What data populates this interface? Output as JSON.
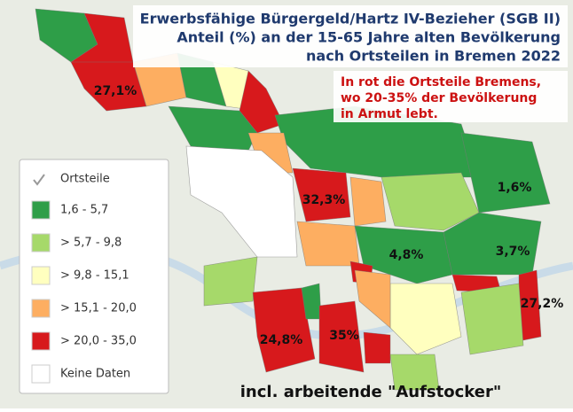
{
  "title": {
    "lines": [
      "Erwerbsfähige Bürgergeld/Hartz IV-Bezieher (SGB II)",
      "Anteil (%) an der 15-65 Jahre alten Bevölkerung",
      "nach Ortsteilen in Bremen 2022"
    ]
  },
  "note": {
    "lines": [
      "In rot die Ortsteile Bremens,",
      "wo 20-35% der Bevölkerung",
      "in Armut lebt."
    ]
  },
  "legend": {
    "title": "Ortsteile",
    "items": [
      {
        "label": "1,6 - 5,7",
        "color": "#2e9e48"
      },
      {
        "label": "> 5,7 - 9,8",
        "color": "#a6d96a"
      },
      {
        "label": "> 9,8 - 15,1",
        "color": "#ffffbf"
      },
      {
        "label": "> 15,1 - 20,0",
        "color": "#fdae61"
      },
      {
        "label": "> 20,0 - 35,0",
        "color": "#d7191c"
      },
      {
        "label": "Keine Daten",
        "color": "#ffffff"
      }
    ]
  },
  "map_labels": [
    "27,1%",
    "32,3%",
    "1,6%",
    "4,8%",
    "3,7%",
    "27,2%",
    "24,8%",
    "35%"
  ],
  "footer": "incl. arbeitende \"Aufstocker\""
}
